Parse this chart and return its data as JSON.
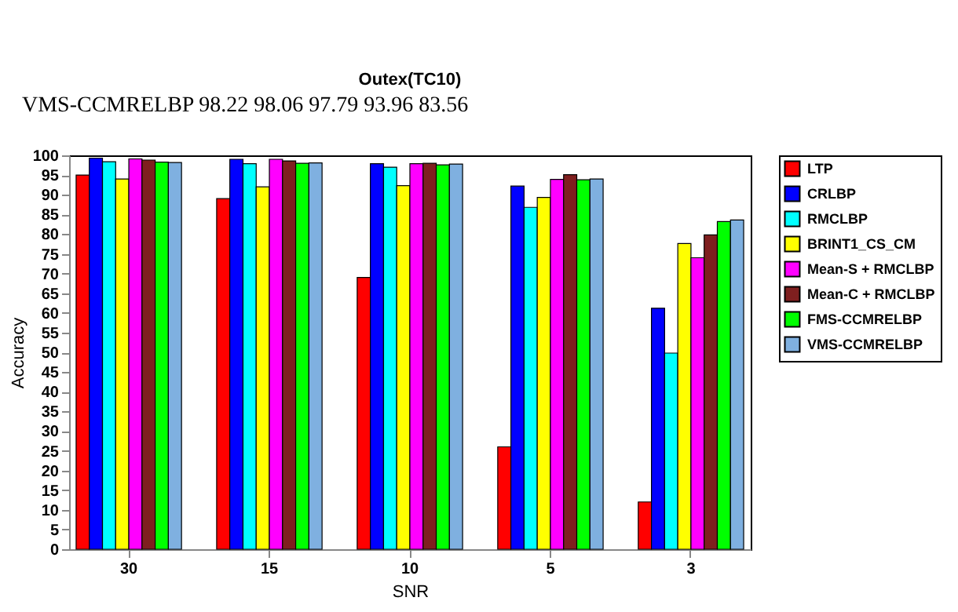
{
  "chart_data": {
    "type": "bar",
    "title": "Outex(TC10)",
    "xlabel": "SNR",
    "ylabel": "Accuracy",
    "categories": [
      "30",
      "15",
      "10",
      "5",
      "3"
    ],
    "series": [
      {
        "name": "LTP",
        "color": "#ff0000",
        "values": [
          95,
          89,
          69,
          26,
          12
        ]
      },
      {
        "name": "CRLBP",
        "color": "#0000ff",
        "values": [
          99.3,
          99,
          97.9,
          92.2,
          61.2
        ]
      },
      {
        "name": "RMCLBP",
        "color": "#00ffff",
        "values": [
          98.4,
          97.9,
          97,
          86.8,
          49.8
        ]
      },
      {
        "name": "BRINT1_CS_CM",
        "color": "#ffff00",
        "values": [
          94,
          92,
          92.3,
          89.3,
          77.6
        ]
      },
      {
        "name": "Mean-S + RMCLBP",
        "color": "#ff00ff",
        "values": [
          99.1,
          99,
          97.9,
          93.9,
          74
        ]
      },
      {
        "name": "Mean-C + RMCLBP",
        "color": "#7f1f1f",
        "values": [
          98.8,
          98.6,
          98,
          95.1,
          79.8
        ]
      },
      {
        "name": "FMS-CCMRELBP",
        "color": "#00ff00",
        "values": [
          98.3,
          98,
          97.6,
          93.8,
          83.2
        ]
      },
      {
        "name": "VMS-CCMRELBP",
        "color": "#7fb0e0",
        "values": [
          98.2,
          98.1,
          97.8,
          94.0,
          83.6
        ]
      }
    ],
    "ylim": [
      0,
      100
    ],
    "yticks": [
      0,
      5,
      10,
      15,
      20,
      25,
      30,
      35,
      40,
      45,
      50,
      55,
      60,
      65,
      70,
      75,
      80,
      85,
      90,
      95,
      100
    ],
    "grid": false,
    "legend": "top right",
    "annotations": [
      "VMS-CCMRELBP 98.22 98.06 97.79 93.96 83.56"
    ]
  }
}
